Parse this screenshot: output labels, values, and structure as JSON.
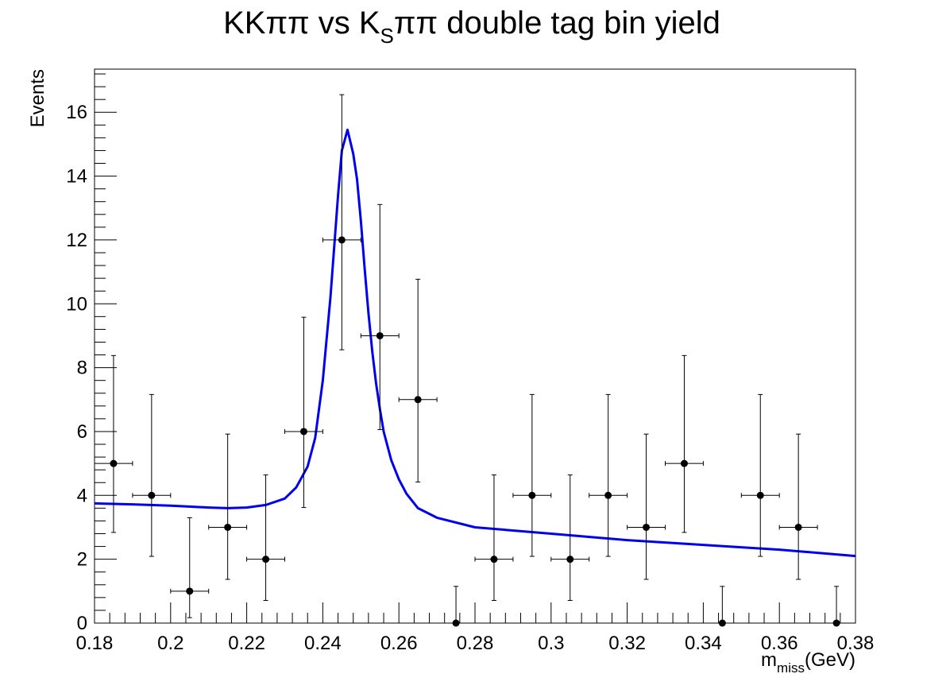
{
  "chart_data": {
    "type": "scatter",
    "title_main": "KKππ vs K",
    "title_sub": "S",
    "title_tail": "ππ double tag bin yield",
    "xlabel_main": "m",
    "xlabel_sub": "miss",
    "xlabel_tail": "(GeV)",
    "ylabel": "Events",
    "xlim": [
      0.18,
      0.38
    ],
    "ylim": [
      0,
      17.35
    ],
    "x_major_ticks": [
      0.18,
      0.2,
      0.22,
      0.24,
      0.26,
      0.28,
      0.3,
      0.32,
      0.34,
      0.36,
      0.38
    ],
    "x_tick_labels": [
      "0.18",
      "0.2",
      "0.22",
      "0.24",
      "0.26",
      "0.28",
      "0.3",
      "0.32",
      "0.34",
      "0.36",
      "0.38"
    ],
    "y_major_ticks": [
      0,
      2,
      4,
      6,
      8,
      10,
      12,
      14,
      16
    ],
    "y_tick_labels": [
      "0",
      "2",
      "4",
      "6",
      "8",
      "10",
      "12",
      "14",
      "16"
    ],
    "grid": false,
    "legend": "none",
    "points_color": "#000000",
    "fit_color": "#0000ee",
    "data_points": [
      {
        "x": 0.185,
        "y": 5,
        "xerr": 0.005,
        "yerr_low": 2.16,
        "yerr_high": 3.38
      },
      {
        "x": 0.195,
        "y": 4,
        "xerr": 0.005,
        "yerr_low": 1.91,
        "yerr_high": 3.16
      },
      {
        "x": 0.205,
        "y": 1,
        "xerr": 0.005,
        "yerr_low": 0.83,
        "yerr_high": 2.3
      },
      {
        "x": 0.215,
        "y": 3,
        "xerr": 0.005,
        "yerr_low": 1.63,
        "yerr_high": 2.92
      },
      {
        "x": 0.225,
        "y": 2,
        "xerr": 0.005,
        "yerr_low": 1.29,
        "yerr_high": 2.64
      },
      {
        "x": 0.235,
        "y": 6,
        "xerr": 0.005,
        "yerr_low": 2.38,
        "yerr_high": 3.58
      },
      {
        "x": 0.245,
        "y": 12,
        "xerr": 0.005,
        "yerr_low": 3.44,
        "yerr_high": 4.55
      },
      {
        "x": 0.255,
        "y": 9,
        "xerr": 0.005,
        "yerr_low": 2.94,
        "yerr_high": 4.11
      },
      {
        "x": 0.265,
        "y": 7,
        "xerr": 0.005,
        "yerr_low": 2.58,
        "yerr_high": 3.77
      },
      {
        "x": 0.275,
        "y": 0,
        "xerr": 0.0,
        "yerr_low": 0.0,
        "yerr_high": 1.15
      },
      {
        "x": 0.285,
        "y": 2,
        "xerr": 0.005,
        "yerr_low": 1.29,
        "yerr_high": 2.64
      },
      {
        "x": 0.295,
        "y": 4,
        "xerr": 0.005,
        "yerr_low": 1.91,
        "yerr_high": 3.16
      },
      {
        "x": 0.305,
        "y": 2,
        "xerr": 0.005,
        "yerr_low": 1.29,
        "yerr_high": 2.64
      },
      {
        "x": 0.315,
        "y": 4,
        "xerr": 0.005,
        "yerr_low": 1.91,
        "yerr_high": 3.16
      },
      {
        "x": 0.325,
        "y": 3,
        "xerr": 0.005,
        "yerr_low": 1.63,
        "yerr_high": 2.92
      },
      {
        "x": 0.335,
        "y": 5,
        "xerr": 0.005,
        "yerr_low": 2.16,
        "yerr_high": 3.38
      },
      {
        "x": 0.345,
        "y": 0,
        "xerr": 0.0,
        "yerr_low": 0.0,
        "yerr_high": 1.15
      },
      {
        "x": 0.355,
        "y": 4,
        "xerr": 0.005,
        "yerr_low": 1.91,
        "yerr_high": 3.16
      },
      {
        "x": 0.365,
        "y": 3,
        "xerr": 0.005,
        "yerr_low": 1.63,
        "yerr_high": 2.92
      },
      {
        "x": 0.375,
        "y": 0,
        "xerr": 0.0,
        "yerr_low": 0.0,
        "yerr_high": 1.15
      }
    ],
    "fit_curve": {
      "x": [
        0.18,
        0.19,
        0.2,
        0.21,
        0.215,
        0.22,
        0.225,
        0.23,
        0.233,
        0.236,
        0.238,
        0.24,
        0.242,
        0.244,
        0.245,
        0.2465,
        0.248,
        0.249,
        0.25,
        0.251,
        0.252,
        0.253,
        0.254,
        0.255,
        0.256,
        0.258,
        0.26,
        0.262,
        0.265,
        0.27,
        0.28,
        0.3,
        0.32,
        0.34,
        0.36,
        0.38
      ],
      "y": [
        3.75,
        3.72,
        3.68,
        3.62,
        3.6,
        3.62,
        3.7,
        3.9,
        4.25,
        4.9,
        5.8,
        7.6,
        10.2,
        13.4,
        14.8,
        15.45,
        14.7,
        13.9,
        12.6,
        11.1,
        9.7,
        8.5,
        7.5,
        6.7,
        6.0,
        5.1,
        4.5,
        4.05,
        3.6,
        3.3,
        3.0,
        2.8,
        2.6,
        2.45,
        2.3,
        2.1
      ]
    }
  }
}
